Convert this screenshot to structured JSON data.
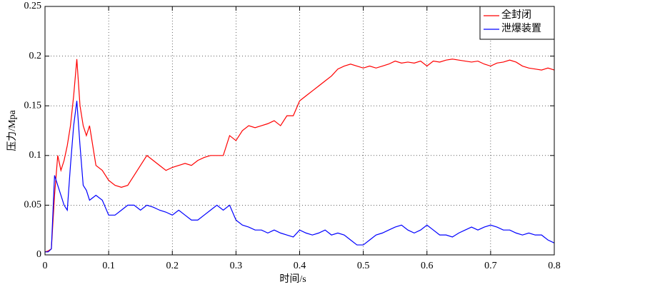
{
  "chart_data": {
    "type": "line",
    "xlabel": "时间/s",
    "ylabel": "压力/Mpa",
    "x": [
      0,
      0.005,
      0.01,
      0.015,
      0.02,
      0.025,
      0.03,
      0.035,
      0.04,
      0.045,
      0.05,
      0.055,
      0.06,
      0.065,
      0.07,
      0.08,
      0.09,
      0.1,
      0.11,
      0.12,
      0.13,
      0.14,
      0.15,
      0.16,
      0.17,
      0.18,
      0.19,
      0.2,
      0.21,
      0.22,
      0.23,
      0.24,
      0.25,
      0.26,
      0.27,
      0.28,
      0.29,
      0.3,
      0.31,
      0.32,
      0.33,
      0.34,
      0.35,
      0.36,
      0.37,
      0.38,
      0.39,
      0.4,
      0.41,
      0.42,
      0.43,
      0.44,
      0.45,
      0.46,
      0.47,
      0.48,
      0.49,
      0.5,
      0.51,
      0.52,
      0.53,
      0.54,
      0.55,
      0.56,
      0.57,
      0.58,
      0.59,
      0.6,
      0.61,
      0.62,
      0.63,
      0.64,
      0.65,
      0.66,
      0.67,
      0.68,
      0.69,
      0.7,
      0.71,
      0.72,
      0.73,
      0.74,
      0.75,
      0.76,
      0.77,
      0.78,
      0.79,
      0.8
    ],
    "series": [
      {
        "name": "全封闭",
        "color": "#ff0000",
        "values": [
          0.003,
          0.004,
          0.006,
          0.06,
          0.1,
          0.085,
          0.095,
          0.11,
          0.13,
          0.16,
          0.197,
          0.15,
          0.13,
          0.12,
          0.13,
          0.09,
          0.085,
          0.075,
          0.07,
          0.068,
          0.07,
          0.08,
          0.09,
          0.1,
          0.095,
          0.09,
          0.085,
          0.088,
          0.09,
          0.092,
          0.09,
          0.095,
          0.098,
          0.1,
          0.1,
          0.1,
          0.12,
          0.115,
          0.125,
          0.13,
          0.128,
          0.13,
          0.132,
          0.135,
          0.13,
          0.14,
          0.14,
          0.155,
          0.16,
          0.165,
          0.17,
          0.175,
          0.18,
          0.187,
          0.19,
          0.192,
          0.19,
          0.188,
          0.19,
          0.188,
          0.19,
          0.192,
          0.195,
          0.193,
          0.194,
          0.193,
          0.195,
          0.19,
          0.195,
          0.194,
          0.196,
          0.197,
          0.196,
          0.195,
          0.194,
          0.195,
          0.192,
          0.19,
          0.193,
          0.194,
          0.196,
          0.194,
          0.19,
          0.188,
          0.187,
          0.186,
          0.188,
          0.186
        ]
      },
      {
        "name": "泄爆装置",
        "color": "#0000ff",
        "values": [
          0.003,
          0.003,
          0.006,
          0.08,
          0.07,
          0.06,
          0.05,
          0.045,
          0.09,
          0.13,
          0.155,
          0.11,
          0.07,
          0.065,
          0.055,
          0.06,
          0.055,
          0.04,
          0.04,
          0.045,
          0.05,
          0.05,
          0.045,
          0.05,
          0.048,
          0.045,
          0.043,
          0.04,
          0.045,
          0.04,
          0.035,
          0.035,
          0.04,
          0.045,
          0.05,
          0.045,
          0.05,
          0.035,
          0.03,
          0.028,
          0.025,
          0.025,
          0.022,
          0.025,
          0.022,
          0.02,
          0.018,
          0.025,
          0.022,
          0.02,
          0.022,
          0.025,
          0.02,
          0.022,
          0.02,
          0.015,
          0.01,
          0.01,
          0.015,
          0.02,
          0.022,
          0.025,
          0.028,
          0.03,
          0.025,
          0.022,
          0.025,
          0.03,
          0.025,
          0.02,
          0.02,
          0.018,
          0.022,
          0.025,
          0.028,
          0.025,
          0.028,
          0.03,
          0.028,
          0.025,
          0.025,
          0.022,
          0.02,
          0.022,
          0.02,
          0.02,
          0.015,
          0.012
        ]
      }
    ],
    "xlim": [
      0,
      0.8
    ],
    "ylim": [
      0,
      0.25
    ],
    "xticks": [
      0,
      0.1,
      0.2,
      0.3,
      0.4,
      0.5,
      0.6,
      0.7,
      0.8
    ],
    "yticks": [
      0,
      0.05,
      0.1,
      0.15,
      0.2,
      0.25
    ],
    "grid": true,
    "legend": "upper right"
  }
}
